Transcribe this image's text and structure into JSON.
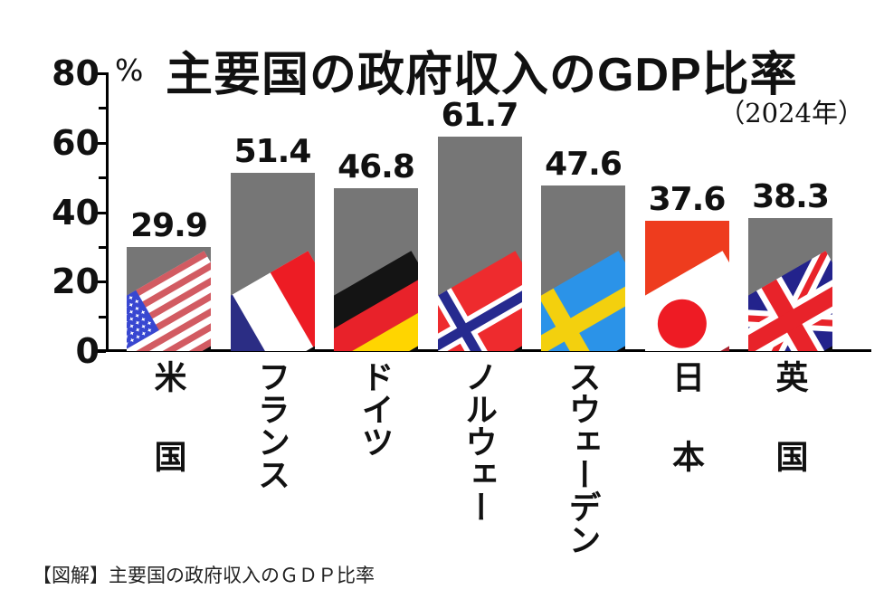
{
  "title": "主要国の政府収入のGDP比率",
  "unit_label": "%",
  "year_label": "（2024年）",
  "caption": "【図解】主要国の政府収入のＧＤＰ比率",
  "chart_data": {
    "type": "bar",
    "title": "主要国の政府収入のGDP比率",
    "subtitle": "（2024年）",
    "ylabel": "%",
    "ylim": [
      0,
      80
    ],
    "yticks_major": [
      0,
      20,
      40,
      60,
      80
    ],
    "yticks_minor": [
      10,
      30,
      50,
      70
    ],
    "grid": false,
    "legend": "none",
    "categories": [
      "米国",
      "フランス",
      "ドイツ",
      "ノルウェー",
      "スウェーデン",
      "日本",
      "英国"
    ],
    "values": [
      29.9,
      51.4,
      46.8,
      61.7,
      47.6,
      37.6,
      38.3
    ],
    "flags": [
      "us",
      "fr",
      "de",
      "no",
      "se",
      "jp",
      "uk"
    ],
    "bar_note": "each gray bar contains a tilted national flag with a black drop-shadow; Japan's bar is red with a dark-red shadow"
  },
  "colors": {
    "bar_gray": "#767676",
    "shadow_black": "#0a0a0a",
    "axis": "#000000",
    "japan_bar": "#ee3c1e",
    "japan_shadow": "#a8222e",
    "flag_palette": {
      "us_red": "#d25b62",
      "us_blue": "#3847d1",
      "white": "#ffffff",
      "fr_blue": "#2b2d84",
      "fr_red": "#ed1c24",
      "de_black": "#141414",
      "de_red": "#e8222a",
      "de_gold": "#ffd500",
      "no_red": "#ee2b2e",
      "no_blue": "#262a8f",
      "se_blue": "#2b93e8",
      "se_yellow": "#f3d00e",
      "jp_red": "#ee1b24",
      "uk_blue": "#23238c",
      "uk_red": "#e8232a"
    }
  }
}
